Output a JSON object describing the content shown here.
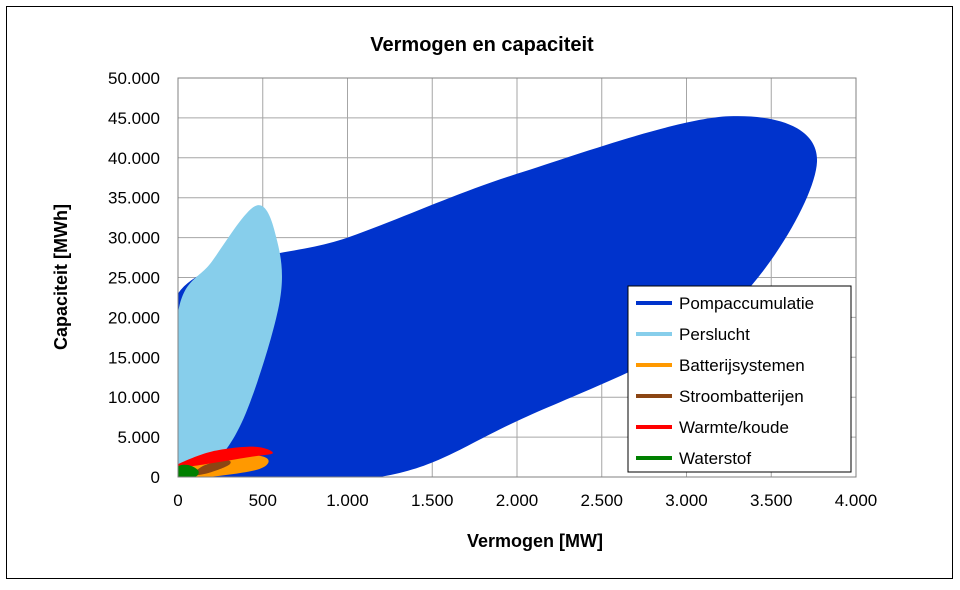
{
  "chart_data": {
    "type": "area",
    "title": "Vermogen en capaciteit",
    "xlabel": "Vermogen [MW]",
    "ylabel": "Capaciteit [MWh]",
    "xlim": [
      0,
      4000
    ],
    "ylim": [
      0,
      50000
    ],
    "x_ticks": [
      "0",
      "500",
      "1.000",
      "1.500",
      "2.000",
      "2.500",
      "3.000",
      "3.500",
      "4.000"
    ],
    "y_ticks": [
      "0",
      "5.000",
      "10.000",
      "15.000",
      "20.000",
      "25.000",
      "30.000",
      "35.000",
      "40.000",
      "45.000",
      "50.000"
    ],
    "grid": true,
    "legend_position": "bottom-right",
    "series": [
      {
        "name": "Pompaccumulatie",
        "color": "#0033cc",
        "outline": [
          [
            0,
            23000
          ],
          [
            1000,
            30000
          ],
          [
            2000,
            38000
          ],
          [
            3250,
            45200
          ],
          [
            3770,
            39500
          ],
          [
            3200,
            20000
          ],
          [
            2000,
            7000
          ],
          [
            1190,
            0
          ],
          [
            0,
            0
          ]
        ]
      },
      {
        "name": "Persluch",
        "label": "Perslucht",
        "color": "#87ceeb",
        "outline": [
          [
            0,
            20500
          ],
          [
            200,
            27000
          ],
          [
            460,
            34000
          ],
          [
            580,
            30000
          ],
          [
            600,
            22000
          ],
          [
            400,
            8000
          ],
          [
            200,
            1500
          ],
          [
            0,
            500
          ]
        ]
      },
      {
        "name": "Batterijsystemen",
        "label": "Batterijsystemen",
        "color": "#ff9900",
        "outline": [
          [
            0,
            300
          ],
          [
            100,
            2500
          ],
          [
            300,
            3100
          ],
          [
            520,
            2400
          ],
          [
            480,
            1000
          ],
          [
            200,
            50
          ],
          [
            0,
            0
          ]
        ]
      },
      {
        "name": "Stroombatterijen",
        "label": "Stroombatterijen",
        "color": "#8b4513",
        "outline": [
          [
            80,
            300
          ],
          [
            160,
            1500
          ],
          [
            290,
            2100
          ],
          [
            300,
            1500
          ],
          [
            180,
            500
          ],
          [
            80,
            150
          ]
        ]
      },
      {
        "name": "Warmte/koude",
        "label": "Warmte/koude",
        "color": "#ff0000",
        "outline": [
          [
            0,
            1600
          ],
          [
            200,
            3200
          ],
          [
            450,
            3800
          ],
          [
            560,
            3000
          ],
          [
            420,
            2500
          ],
          [
            100,
            1400
          ],
          [
            0,
            1200
          ]
        ]
      },
      {
        "name": "Waterstof",
        "label": "Waterstof",
        "color": "#008000",
        "outline": [
          [
            0,
            0
          ],
          [
            0,
            1300
          ],
          [
            60,
            1500
          ],
          [
            120,
            800
          ],
          [
            100,
            0
          ]
        ]
      }
    ]
  }
}
